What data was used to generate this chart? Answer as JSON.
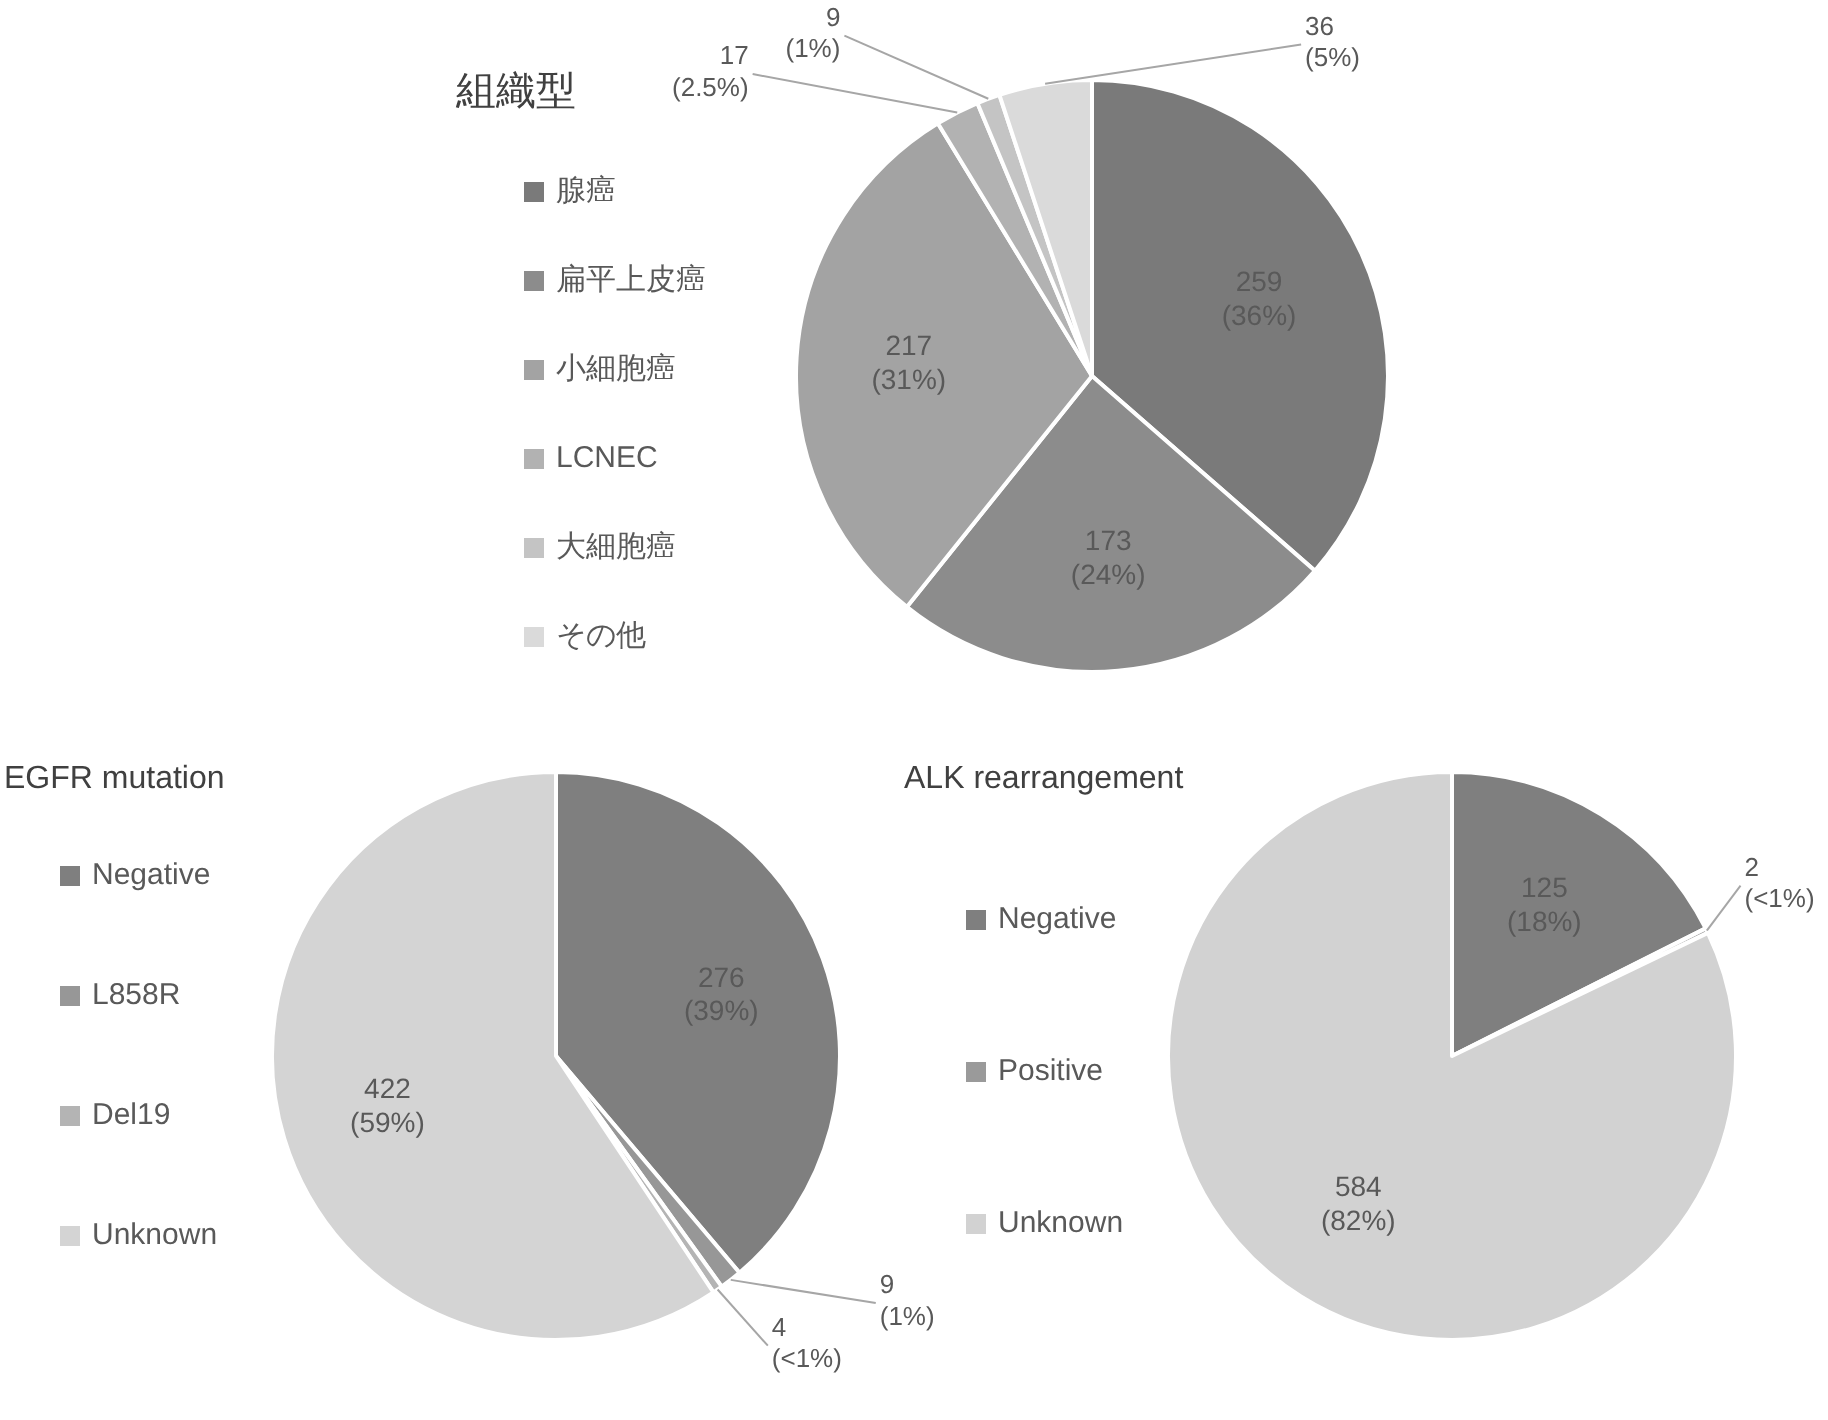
{
  "chart_data": [
    {
      "type": "pie",
      "title": "組織型",
      "legend": "left",
      "categories": [
        "腺癌",
        "扁平上皮癌",
        "小細胞癌",
        "LCNEC",
        "大細胞癌",
        "その他"
      ],
      "values": [
        259,
        173,
        217,
        17,
        9,
        36
      ],
      "colors": [
        "#7a7a7a",
        "#8c8c8c",
        "#a3a3a3",
        "#b2b2b2",
        "#c4c4c4",
        "#dadada"
      ],
      "value_labels": [
        "259\n(36%)",
        "173\n(24%)",
        "217\n(31%)",
        "17\n(2.5%)",
        "9\n(1%)",
        "36\n(5%)"
      ]
    },
    {
      "type": "pie",
      "title": "EGFR mutation",
      "legend": "left",
      "categories": [
        "Negative",
        "L858R",
        "Del19",
        "Unknown"
      ],
      "values": [
        276,
        9,
        4,
        422
      ],
      "colors": [
        "#7f7f7f",
        "#979797",
        "#b4b4b4",
        "#d4d4d4"
      ],
      "value_labels": [
        "276\n(39%)",
        "9\n(1%)",
        "4\n(<1%)",
        "422\n(59%)"
      ]
    },
    {
      "type": "pie",
      "title": "ALK rearrangement",
      "legend": "left",
      "categories": [
        "Negative",
        "Positive",
        "Unknown"
      ],
      "values": [
        125,
        2,
        584
      ],
      "colors": [
        "#7f7f7f",
        "#9a9a9a",
        "#d2d2d2"
      ],
      "value_labels": [
        "125\n(18%)",
        "2\n(<1%)",
        "584\n(82%)"
      ]
    }
  ]
}
